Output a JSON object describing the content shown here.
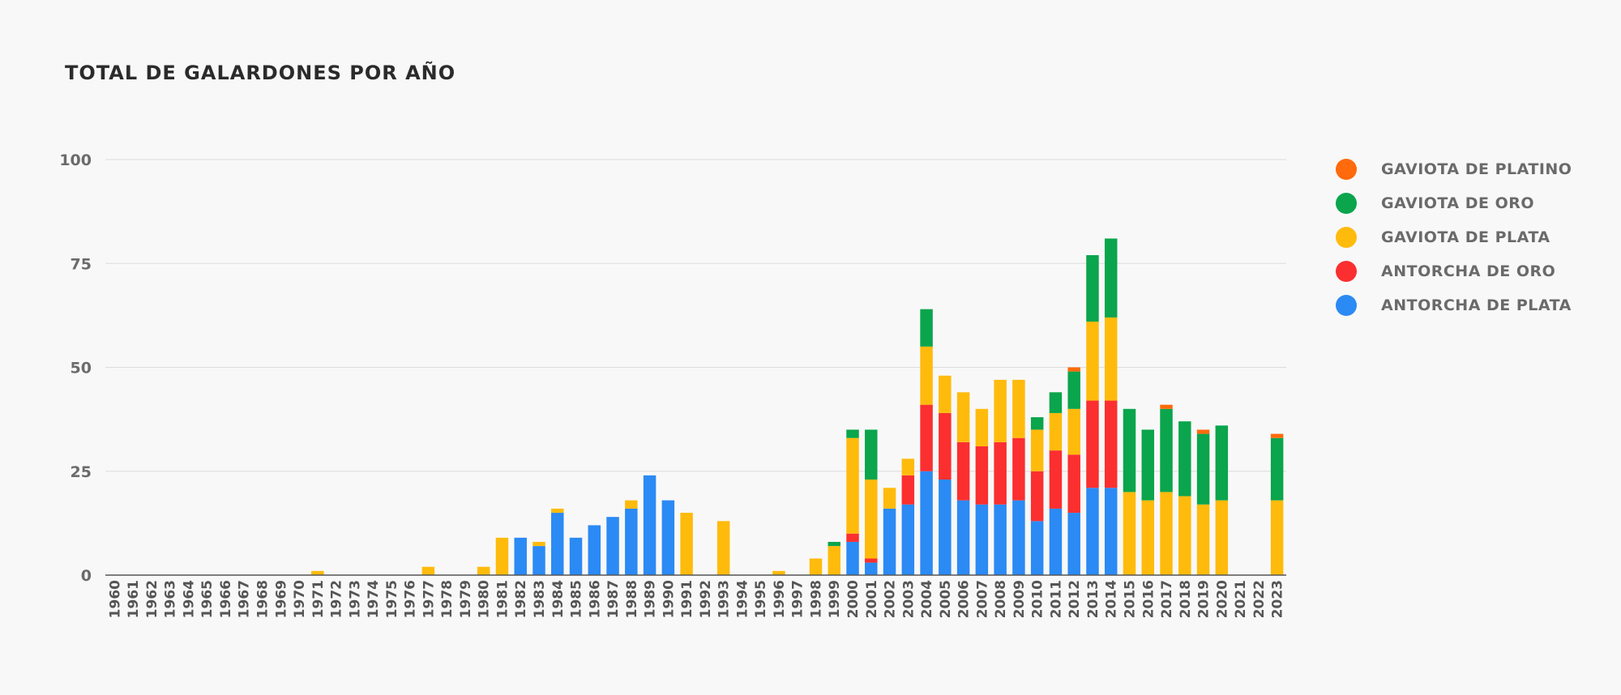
{
  "chart_data": {
    "type": "bar",
    "stacked": true,
    "title": "TOTAL DE GALARDONES POR AÑO",
    "xlabel": "",
    "ylabel": "",
    "ylim": [
      0,
      100
    ],
    "yticks": [
      0,
      25,
      50,
      75,
      100
    ],
    "grid": true,
    "legend_position": "right",
    "categories": [
      "1960",
      "1961",
      "1962",
      "1963",
      "1964",
      "1965",
      "1966",
      "1967",
      "1968",
      "1969",
      "1970",
      "1971",
      "1972",
      "1973",
      "1974",
      "1975",
      "1976",
      "1977",
      "1978",
      "1979",
      "1980",
      "1981",
      "1982",
      "1983",
      "1984",
      "1985",
      "1986",
      "1987",
      "1988",
      "1989",
      "1990",
      "1991",
      "1992",
      "1993",
      "1994",
      "1995",
      "1996",
      "1997",
      "1998",
      "1999",
      "2000",
      "2001",
      "2002",
      "2003",
      "2004",
      "2005",
      "2006",
      "2007",
      "2008",
      "2009",
      "2010",
      "2011",
      "2012",
      "2013",
      "2014",
      "2015",
      "2016",
      "2017",
      "2018",
      "2019",
      "2020",
      "2021",
      "2022",
      "2023"
    ],
    "series": [
      {
        "name": "ANTORCHA DE PLATA",
        "color": "#2b8af4",
        "values": [
          0,
          0,
          0,
          0,
          0,
          0,
          0,
          0,
          0,
          0,
          0,
          0,
          0,
          0,
          0,
          0,
          0,
          0,
          0,
          0,
          0,
          0,
          9,
          7,
          15,
          9,
          12,
          14,
          16,
          24,
          18,
          0,
          0,
          0,
          0,
          0,
          0,
          0,
          0,
          0,
          8,
          3,
          16,
          17,
          25,
          23,
          18,
          17,
          17,
          18,
          13,
          16,
          15,
          21,
          21,
          0,
          0,
          0,
          0,
          0,
          0,
          0,
          0,
          0
        ]
      },
      {
        "name": "ANTORCHA DE ORO",
        "color": "#fb2f2f",
        "values": [
          0,
          0,
          0,
          0,
          0,
          0,
          0,
          0,
          0,
          0,
          0,
          0,
          0,
          0,
          0,
          0,
          0,
          0,
          0,
          0,
          0,
          0,
          0,
          0,
          0,
          0,
          0,
          0,
          0,
          0,
          0,
          0,
          0,
          0,
          0,
          0,
          0,
          0,
          0,
          0,
          2,
          1,
          0,
          7,
          16,
          16,
          14,
          14,
          15,
          15,
          12,
          14,
          14,
          21,
          21,
          0,
          0,
          0,
          0,
          0,
          0,
          0,
          0,
          0
        ]
      },
      {
        "name": "GAVIOTA DE PLATA",
        "color": "#ffbb0c",
        "values": [
          0,
          0,
          0,
          0,
          0,
          0,
          0,
          0,
          0,
          0,
          0,
          1,
          0,
          0,
          0,
          0,
          0,
          2,
          0,
          0,
          2,
          9,
          0,
          1,
          1,
          0,
          0,
          0,
          2,
          0,
          0,
          15,
          0,
          13,
          0,
          0,
          1,
          0,
          4,
          7,
          23,
          19,
          5,
          4,
          14,
          9,
          12,
          9,
          15,
          14,
          10,
          9,
          11,
          19,
          20,
          20,
          18,
          20,
          19,
          17,
          18,
          0,
          0,
          18
        ]
      },
      {
        "name": "GAVIOTA DE ORO",
        "color": "#0aa54c",
        "values": [
          0,
          0,
          0,
          0,
          0,
          0,
          0,
          0,
          0,
          0,
          0,
          0,
          0,
          0,
          0,
          0,
          0,
          0,
          0,
          0,
          0,
          0,
          0,
          0,
          0,
          0,
          0,
          0,
          0,
          0,
          0,
          0,
          0,
          0,
          0,
          0,
          0,
          0,
          0,
          1,
          2,
          12,
          0,
          0,
          9,
          0,
          0,
          0,
          0,
          0,
          3,
          5,
          9,
          16,
          19,
          20,
          17,
          20,
          18,
          17,
          18,
          0,
          0,
          15
        ]
      },
      {
        "name": "GAVIOTA DE PLATINO",
        "color": "#ff6a0c",
        "values": [
          0,
          0,
          0,
          0,
          0,
          0,
          0,
          0,
          0,
          0,
          0,
          0,
          0,
          0,
          0,
          0,
          0,
          0,
          0,
          0,
          0,
          0,
          0,
          0,
          0,
          0,
          0,
          0,
          0,
          0,
          0,
          0,
          0,
          0,
          0,
          0,
          0,
          0,
          0,
          0,
          0,
          0,
          0,
          0,
          0,
          0,
          0,
          0,
          0,
          0,
          0,
          0,
          1,
          0,
          0,
          0,
          0,
          1,
          0,
          1,
          0,
          0,
          0,
          1
        ]
      }
    ]
  },
  "legend": [
    {
      "label": "GAVIOTA DE PLATINO",
      "color": "#ff6a0c"
    },
    {
      "label": "GAVIOTA DE ORO",
      "color": "#0aa54c"
    },
    {
      "label": "GAVIOTA DE PLATA",
      "color": "#ffbb0c"
    },
    {
      "label": "ANTORCHA DE ORO",
      "color": "#fb2f2f"
    },
    {
      "label": "ANTORCHA DE PLATA",
      "color": "#2b8af4"
    }
  ]
}
